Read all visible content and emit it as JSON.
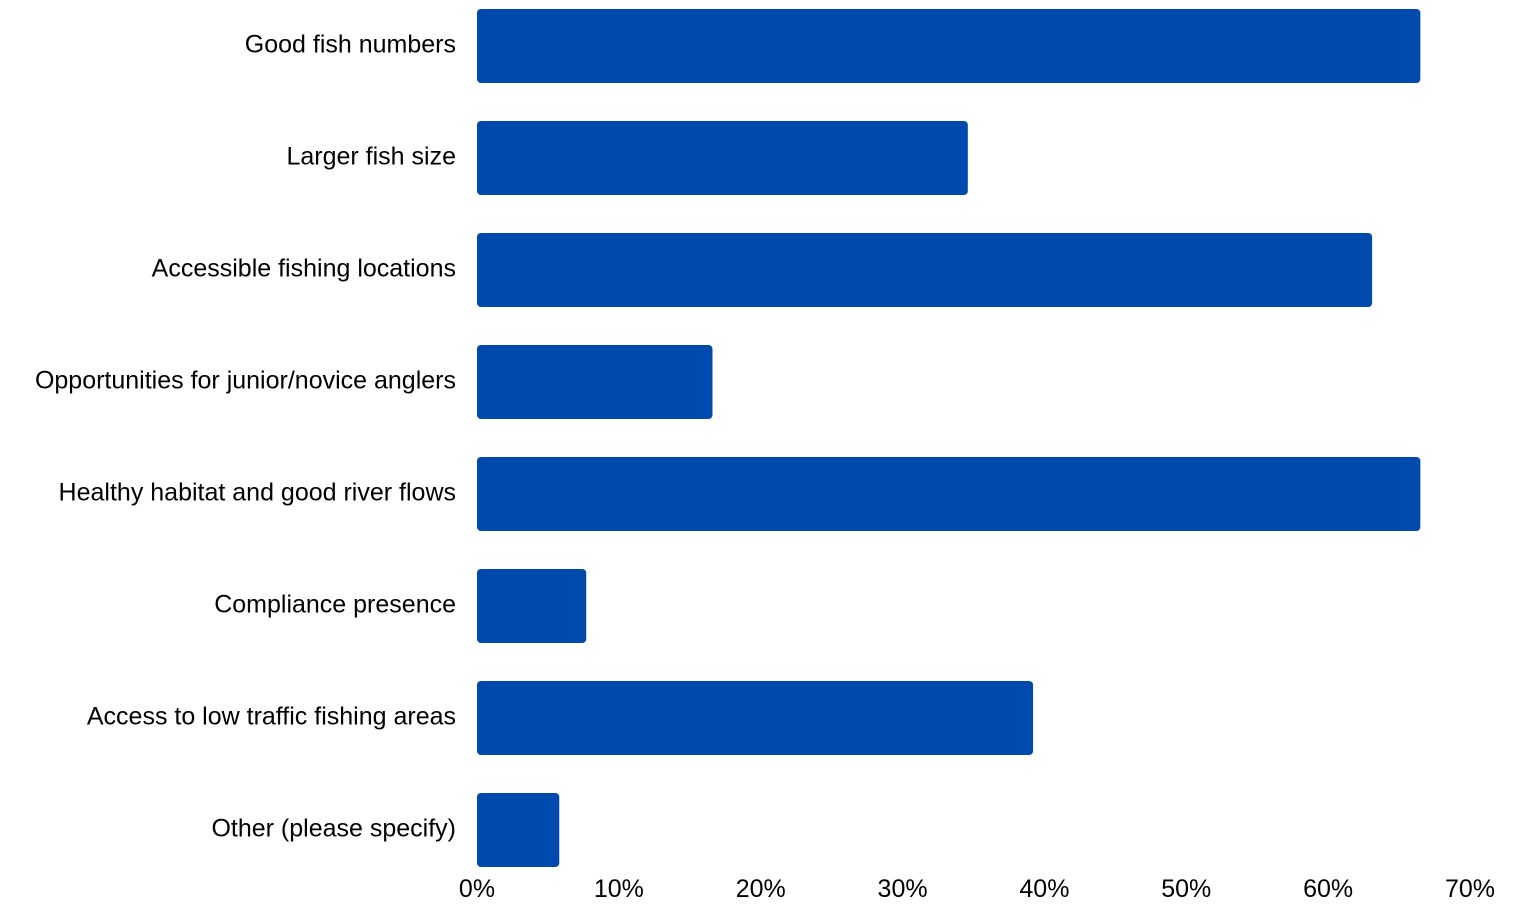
{
  "chart_data": {
    "type": "bar",
    "orientation": "horizontal",
    "categories": [
      "Good fish numbers",
      "Larger fish size",
      "Accessible fishing locations",
      "Opportunities for junior/novice anglers",
      "Healthy habitat and good river flows",
      "Compliance presence",
      "Access to low traffic fishing areas",
      "Other (please specify)"
    ],
    "values": [
      66.5,
      34.6,
      63.1,
      16.6,
      66.5,
      7.7,
      39.2,
      5.8
    ],
    "xlim": [
      0,
      70
    ],
    "xticks": [
      0,
      10,
      20,
      30,
      40,
      50,
      60,
      70
    ],
    "xtick_labels": [
      "0%",
      "10%",
      "20%",
      "30%",
      "40%",
      "50%",
      "60%",
      "70%"
    ],
    "title": "",
    "xlabel": "",
    "ylabel": "",
    "grid": false,
    "legend": "none",
    "bar_color": "#004AAD"
  }
}
